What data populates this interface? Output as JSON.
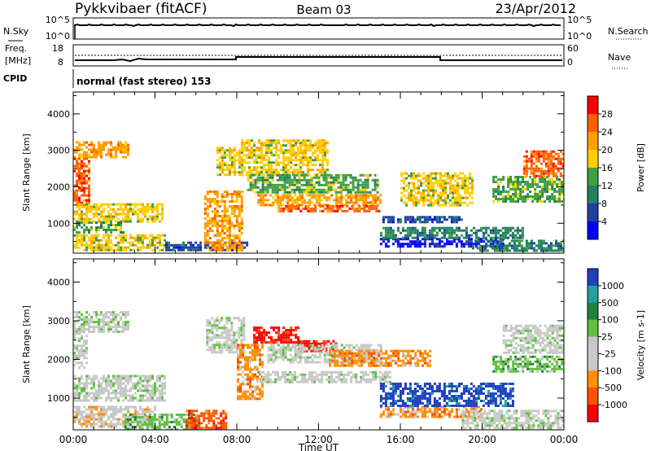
{
  "header": {
    "station": "Pykkvibaer (fitACF)",
    "beam": "Beam 03",
    "date": "23/Apr/2012"
  },
  "top_panels": {
    "nsky_label": "N.Sky",
    "nsky_ticks": [
      "10^5",
      "10^0"
    ],
    "nsearch_label": "N.Search",
    "nsearch_ticks": [
      "10^5",
      "10^0"
    ],
    "freq_label_line1": "Freq.",
    "freq_label_line2": "[MHz]",
    "freq_ticks": [
      "18",
      "8"
    ],
    "nave_label": "Nave",
    "nave_ticks": [
      "60",
      "0"
    ],
    "cpid_label": "CPID",
    "cpid_text": "normal (fast stereo) 153"
  },
  "chart_data": [
    {
      "type": "heatmap",
      "title": "",
      "quantity": "Power",
      "ylabel": "Slant Range [km]",
      "xlabel": "",
      "ylim": [
        180,
        4600
      ],
      "yticks": [
        "1000",
        "2000",
        "3000",
        "4000"
      ],
      "colorbar_label": "Power [dB]",
      "colorbar_ticks": [
        "28",
        "24",
        "20",
        "16",
        "12",
        "8",
        "4"
      ],
      "colorbar_colors": [
        "#ff0000",
        "#ff6000",
        "#ffa000",
        "#ffd000",
        "#40a040",
        "#208060",
        "#2040a0",
        "#0000ff"
      ],
      "xlim_hours": [
        0,
        24
      ],
      "regions": [
        {
          "t": [
            0.0,
            2.7
          ],
          "r": [
            2800,
            3250
          ],
          "level": 2
        },
        {
          "t": [
            0.0,
            0.8
          ],
          "r": [
            1500,
            2800
          ],
          "level": 1
        },
        {
          "t": [
            0.0,
            4.4
          ],
          "r": [
            1050,
            1550
          ],
          "level": 3
        },
        {
          "t": [
            0.0,
            2.5
          ],
          "r": [
            750,
            1050
          ],
          "level": 4
        },
        {
          "t": [
            0.0,
            4.5
          ],
          "r": [
            280,
            700
          ],
          "level": 3
        },
        {
          "t": [
            4.5,
            8.5
          ],
          "r": [
            280,
            500
          ],
          "level": 6
        },
        {
          "t": [
            6.4,
            8.3
          ],
          "r": [
            250,
            1900
          ],
          "level": 2
        },
        {
          "t": [
            7.0,
            8.3
          ],
          "r": [
            2300,
            3100
          ],
          "level": 3
        },
        {
          "t": [
            8.2,
            12.4
          ],
          "r": [
            2300,
            3300
          ],
          "level": 3
        },
        {
          "t": [
            8.5,
            14.9
          ],
          "r": [
            1850,
            2350
          ],
          "level": 4
        },
        {
          "t": [
            9.0,
            15.0
          ],
          "r": [
            1500,
            1800
          ],
          "level": 2
        },
        {
          "t": [
            10.0,
            15.0
          ],
          "r": [
            1300,
            1500
          ],
          "level": 1
        },
        {
          "t": [
            15.0,
            19.0
          ],
          "r": [
            1000,
            1200
          ],
          "level": 6
        },
        {
          "t": [
            15.0,
            21.0
          ],
          "r": [
            350,
            600
          ],
          "level": 7
        },
        {
          "t": [
            15.0,
            22.0
          ],
          "r": [
            600,
            900
          ],
          "level": 5
        },
        {
          "t": [
            16.0,
            19.5
          ],
          "r": [
            1500,
            2400
          ],
          "level": 3
        },
        {
          "t": [
            19.5,
            24.0
          ],
          "r": [
            250,
            550
          ],
          "level": 5
        },
        {
          "t": [
            20.5,
            24.0
          ],
          "r": [
            1600,
            2300
          ],
          "level": 4
        },
        {
          "t": [
            22.0,
            24.0
          ],
          "r": [
            2300,
            3000
          ],
          "level": 1
        }
      ]
    },
    {
      "type": "heatmap",
      "title": "",
      "quantity": "Velocity",
      "ylabel": "Slant Range [km]",
      "xlabel": "Time UT",
      "ylim": [
        180,
        4600
      ],
      "yticks": [
        "1000",
        "2000",
        "3000",
        "4000"
      ],
      "xticks": [
        "00:00",
        "04:00",
        "08:00",
        "12:00",
        "16:00",
        "20:00",
        "00:00"
      ],
      "colorbar_label": "Velocity [m s-1]",
      "colorbar_ticks": [
        "1000",
        "500",
        "100",
        "25",
        "-25",
        "-100",
        "-500",
        "-1000"
      ],
      "colorbar_colors": [
        "#2040c0",
        "#20a0a0",
        "#208040",
        "#60c040",
        "#c8c8c8",
        "#c8c8c8",
        "#ff9000",
        "#ff5000",
        "#ff0000"
      ],
      "xlim_hours": [
        0,
        24
      ],
      "regions": [
        {
          "t": [
            0.0,
            2.7
          ],
          "r": [
            2700,
            3250
          ],
          "level": 4
        },
        {
          "t": [
            0.0,
            0.6
          ],
          "r": [
            1800,
            2700
          ],
          "level": 4
        },
        {
          "t": [
            0.0,
            4.5
          ],
          "r": [
            950,
            1600
          ],
          "level": 4
        },
        {
          "t": [
            0.0,
            4.0
          ],
          "r": [
            250,
            800
          ],
          "level": 5
        },
        {
          "t": [
            2.5,
            6.0
          ],
          "r": [
            200,
            600
          ],
          "level": 3
        },
        {
          "t": [
            5.5,
            7.5
          ],
          "r": [
            250,
            700
          ],
          "level": 7
        },
        {
          "t": [
            6.5,
            8.3
          ],
          "r": [
            2200,
            3100
          ],
          "level": 4
        },
        {
          "t": [
            8.0,
            9.3
          ],
          "r": [
            1000,
            2400
          ],
          "level": 6
        },
        {
          "t": [
            8.8,
            11.0
          ],
          "r": [
            2450,
            2850
          ],
          "level": 8
        },
        {
          "t": [
            11.0,
            12.8
          ],
          "r": [
            2200,
            2500
          ],
          "level": 8
        },
        {
          "t": [
            9.5,
            15.0
          ],
          "r": [
            1900,
            2400
          ],
          "level": 4
        },
        {
          "t": [
            12.5,
            17.5
          ],
          "r": [
            1850,
            2250
          ],
          "level": 6
        },
        {
          "t": [
            9.0,
            15.5
          ],
          "r": [
            1400,
            1700
          ],
          "level": 4
        },
        {
          "t": [
            15.0,
            20.0
          ],
          "r": [
            500,
            800
          ],
          "level": 6
        },
        {
          "t": [
            15.0,
            21.5
          ],
          "r": [
            800,
            1400
          ],
          "level": 0
        },
        {
          "t": [
            19.0,
            24.0
          ],
          "r": [
            250,
            700
          ],
          "level": 4
        },
        {
          "t": [
            20.5,
            24.0
          ],
          "r": [
            1700,
            2100
          ],
          "level": 3
        },
        {
          "t": [
            21.0,
            24.0
          ],
          "r": [
            2200,
            2900
          ],
          "level": 4
        }
      ]
    }
  ]
}
